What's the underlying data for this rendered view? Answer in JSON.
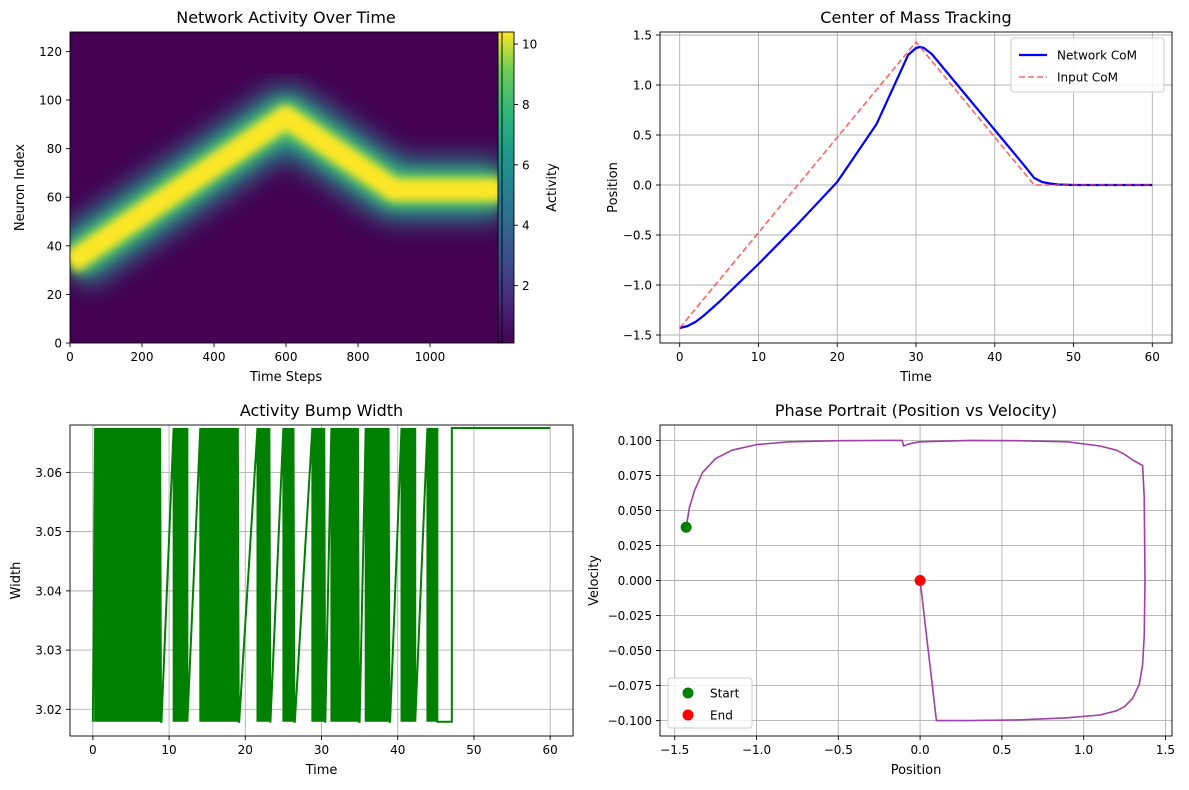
{
  "chart_data": [
    {
      "type": "heatmap",
      "title": "Network Activity Over Time",
      "xlabel": "Time Steps",
      "ylabel": "Neuron Index",
      "xlim": [
        0,
        1200
      ],
      "ylim": [
        0,
        128
      ],
      "xticks": [
        "0",
        "200",
        "400",
        "600",
        "800",
        "1000"
      ],
      "yticks": [
        "0",
        "20",
        "40",
        "60",
        "80",
        "100",
        "120"
      ],
      "colorbar": {
        "label": "Activity",
        "range": [
          0.1,
          10.4
        ],
        "ticks": [
          "2",
          "4",
          "6",
          "8",
          "10"
        ],
        "colormap": "viridis"
      },
      "bump_path": {
        "x": [
          0,
          600,
          900,
          1200
        ],
        "y": [
          33,
          93,
          63,
          63
        ]
      },
      "grid": false
    },
    {
      "type": "line",
      "title": "Center of Mass Tracking",
      "xlabel": "Time",
      "ylabel": "Position",
      "xlim": [
        -2.5,
        62.5
      ],
      "ylim": [
        -1.58,
        1.53
      ],
      "xticks": [
        "0",
        "10",
        "20",
        "30",
        "40",
        "50",
        "60"
      ],
      "yticks": [
        "−1.5",
        "−1.0",
        "−0.5",
        "0.0",
        "0.5",
        "1.0",
        "1.5"
      ],
      "legend": "top-right",
      "grid": true,
      "series": [
        {
          "name": "Network CoM",
          "color": "#0000ff",
          "style": "solid",
          "x": [
            0,
            1,
            2,
            3,
            5,
            10,
            15,
            20,
            25,
            29,
            30,
            30.5,
            31,
            32,
            34,
            36,
            40,
            44,
            45,
            46,
            47,
            48,
            50,
            55,
            60
          ],
          "y": [
            -1.43,
            -1.41,
            -1.37,
            -1.31,
            -1.17,
            -0.79,
            -0.39,
            0.03,
            0.61,
            1.3,
            1.37,
            1.38,
            1.37,
            1.31,
            1.12,
            0.93,
            0.55,
            0.17,
            0.07,
            0.03,
            0.015,
            0.005,
            0.0,
            0.0,
            0.0
          ]
        },
        {
          "name": "Input CoM",
          "color": "#ff4040",
          "style": "dashed",
          "x": [
            0,
            30,
            45,
            60
          ],
          "y": [
            -1.43,
            1.43,
            0.0,
            0.0
          ]
        }
      ]
    },
    {
      "type": "line",
      "title": "Activity Bump Width",
      "xlabel": "Time",
      "ylabel": "Width",
      "xlim": [
        -3,
        63
      ],
      "ylim": [
        3.0155,
        3.068
      ],
      "xticks": [
        "0",
        "10",
        "20",
        "30",
        "40",
        "50",
        "60"
      ],
      "yticks": [
        "3.02",
        "3.03",
        "3.04",
        "3.05",
        "3.06"
      ],
      "grid": true,
      "series": [
        {
          "name": "",
          "color": "#008000",
          "values_levels": [
            3.0179,
            3.0675
          ],
          "toggle_bursts": [
            [
              0.3,
              9.0
            ],
            [
              10.6,
              12.4
            ],
            [
              14.1,
              19.2
            ],
            [
              21.6,
              23.3
            ],
            [
              25.0,
              26.5
            ],
            [
              28.8,
              30.5
            ],
            [
              31.3,
              35.0
            ],
            [
              35.8,
              39.0
            ],
            [
              40.5,
              42.3
            ],
            [
              43.9,
              45.0
            ]
          ],
          "low_segment": [
            45.2,
            47.1
          ],
          "steady_value": 3.0675,
          "x_end": 60
        }
      ]
    },
    {
      "type": "line",
      "title": "Phase Portrait (Position vs Velocity)",
      "xlabel": "Position",
      "ylabel": "Velocity",
      "xlim": [
        -1.59,
        1.54
      ],
      "ylim": [
        -0.111,
        0.111
      ],
      "xticks": [
        "−1.5",
        "−1.0",
        "−0.5",
        "0.0",
        "0.5",
        "1.0",
        "1.5"
      ],
      "yticks": [
        "−0.100",
        "−0.075",
        "−0.050",
        "−0.025",
        "0.000",
        "0.025",
        "0.050",
        "0.075",
        "0.100"
      ],
      "legend": "bottom-left",
      "grid": true,
      "series": [
        {
          "name": "",
          "color": "#9f40a6",
          "x": [
            -1.43,
            -1.41,
            -1.38,
            -1.33,
            -1.25,
            -1.15,
            -1.0,
            -0.8,
            -0.5,
            -0.2,
            -0.11,
            -0.1,
            -0.08,
            -0.05,
            0.0,
            0.3,
            0.6,
            0.9,
            1.1,
            1.2,
            1.25,
            1.3,
            1.36,
            1.37,
            1.375,
            1.37,
            1.36,
            1.34,
            1.3,
            1.25,
            1.2,
            1.1,
            0.9,
            0.6,
            0.3,
            0.1,
            0.0
          ],
          "y": [
            0.038,
            0.052,
            0.064,
            0.077,
            0.087,
            0.093,
            0.097,
            0.099,
            0.0998,
            0.1,
            0.1,
            0.096,
            0.097,
            0.098,
            0.099,
            0.1,
            0.0998,
            0.099,
            0.096,
            0.093,
            0.09,
            0.086,
            0.082,
            0.06,
            0.0,
            -0.04,
            -0.06,
            -0.074,
            -0.084,
            -0.09,
            -0.093,
            -0.096,
            -0.098,
            -0.0995,
            -0.1,
            -0.1,
            0.0
          ]
        }
      ],
      "markers": [
        {
          "name": "Start",
          "x": -1.43,
          "y": 0.038,
          "color": "#008000"
        },
        {
          "name": "End",
          "x": 0.0,
          "y": 0.0,
          "color": "#ff0000"
        }
      ]
    }
  ]
}
